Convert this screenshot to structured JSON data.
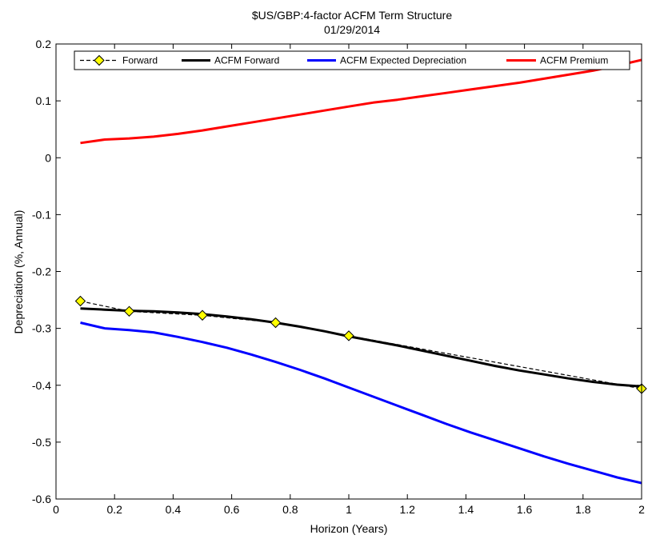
{
  "chart_data": {
    "type": "line",
    "title": "$US/GBP:4-factor ACFM Term Structure",
    "subtitle": "01/29/2014",
    "xlabel": "Horizon (Years)",
    "ylabel": "Depreciation (%, Annual)",
    "xlim": [
      0,
      2
    ],
    "ylim": [
      -0.6,
      0.2
    ],
    "xticks": [
      0,
      0.2,
      0.4,
      0.6,
      0.8,
      1,
      1.2,
      1.4,
      1.6,
      1.8,
      2
    ],
    "xtick_labels": [
      "0",
      "0.2",
      "0.4",
      "0.6",
      "0.8",
      "1",
      "1.2",
      "1.4",
      "1.6",
      "1.8",
      "2"
    ],
    "yticks": [
      0.2,
      0.1,
      0,
      -0.1,
      -0.2,
      -0.3,
      -0.4,
      -0.5,
      -0.6
    ],
    "ytick_labels": [
      "0.2",
      "0.1",
      "0",
      "-0.1",
      "-0.2",
      "-0.3",
      "-0.4",
      "-0.5",
      "-0.6"
    ],
    "grid": false,
    "legend_position": "top",
    "series": [
      {
        "name": "Forward",
        "color": "#000000",
        "line_style": "dashed",
        "marker": "diamond",
        "marker_color": "#ffff00",
        "x": [
          0.0833,
          0.25,
          0.5,
          0.75,
          1.0,
          2.0
        ],
        "y": [
          -0.252,
          -0.27,
          -0.277,
          -0.29,
          -0.313,
          -0.406
        ]
      },
      {
        "name": "ACFM Forward",
        "color": "#000000",
        "line_style": "solid",
        "x": [
          0.0833,
          0.1667,
          0.25,
          0.3333,
          0.4167,
          0.5,
          0.5833,
          0.6667,
          0.75,
          0.8333,
          0.9167,
          1.0,
          1.0833,
          1.1667,
          1.25,
          1.3333,
          1.4167,
          1.5,
          1.5833,
          1.6667,
          1.75,
          1.8333,
          1.9167,
          2.0
        ],
        "y": [
          -0.265,
          -0.267,
          -0.269,
          -0.27,
          -0.272,
          -0.275,
          -0.279,
          -0.284,
          -0.29,
          -0.297,
          -0.305,
          -0.314,
          -0.322,
          -0.33,
          -0.339,
          -0.348,
          -0.357,
          -0.366,
          -0.374,
          -0.381,
          -0.388,
          -0.394,
          -0.399,
          -0.402
        ]
      },
      {
        "name": "ACFM Expected Depreciation",
        "color": "#0000ff",
        "line_style": "solid",
        "x": [
          0.0833,
          0.1667,
          0.25,
          0.3333,
          0.4167,
          0.5,
          0.5833,
          0.6667,
          0.75,
          0.8333,
          0.9167,
          1.0,
          1.0833,
          1.1667,
          1.25,
          1.3333,
          1.4167,
          1.5,
          1.5833,
          1.6667,
          1.75,
          1.8333,
          1.9167,
          2.0
        ],
        "y": [
          -0.29,
          -0.3,
          -0.303,
          -0.307,
          -0.315,
          -0.324,
          -0.334,
          -0.346,
          -0.359,
          -0.373,
          -0.388,
          -0.404,
          -0.42,
          -0.436,
          -0.452,
          -0.468,
          -0.483,
          -0.497,
          -0.511,
          -0.525,
          -0.538,
          -0.55,
          -0.562,
          -0.572
        ]
      },
      {
        "name": "ACFM Premium",
        "color": "#ff0000",
        "line_style": "solid",
        "x": [
          0.0833,
          0.1667,
          0.25,
          0.3333,
          0.4167,
          0.5,
          0.5833,
          0.6667,
          0.75,
          0.8333,
          0.9167,
          1.0,
          1.0833,
          1.1667,
          1.25,
          1.3333,
          1.4167,
          1.5,
          1.5833,
          1.6667,
          1.75,
          1.8333,
          1.9167,
          2.0
        ],
        "y": [
          0.026,
          0.032,
          0.034,
          0.037,
          0.042,
          0.048,
          0.055,
          0.062,
          0.069,
          0.076,
          0.083,
          0.09,
          0.097,
          0.102,
          0.108,
          0.114,
          0.12,
          0.126,
          0.132,
          0.139,
          0.146,
          0.153,
          0.162,
          0.172
        ]
      }
    ]
  }
}
